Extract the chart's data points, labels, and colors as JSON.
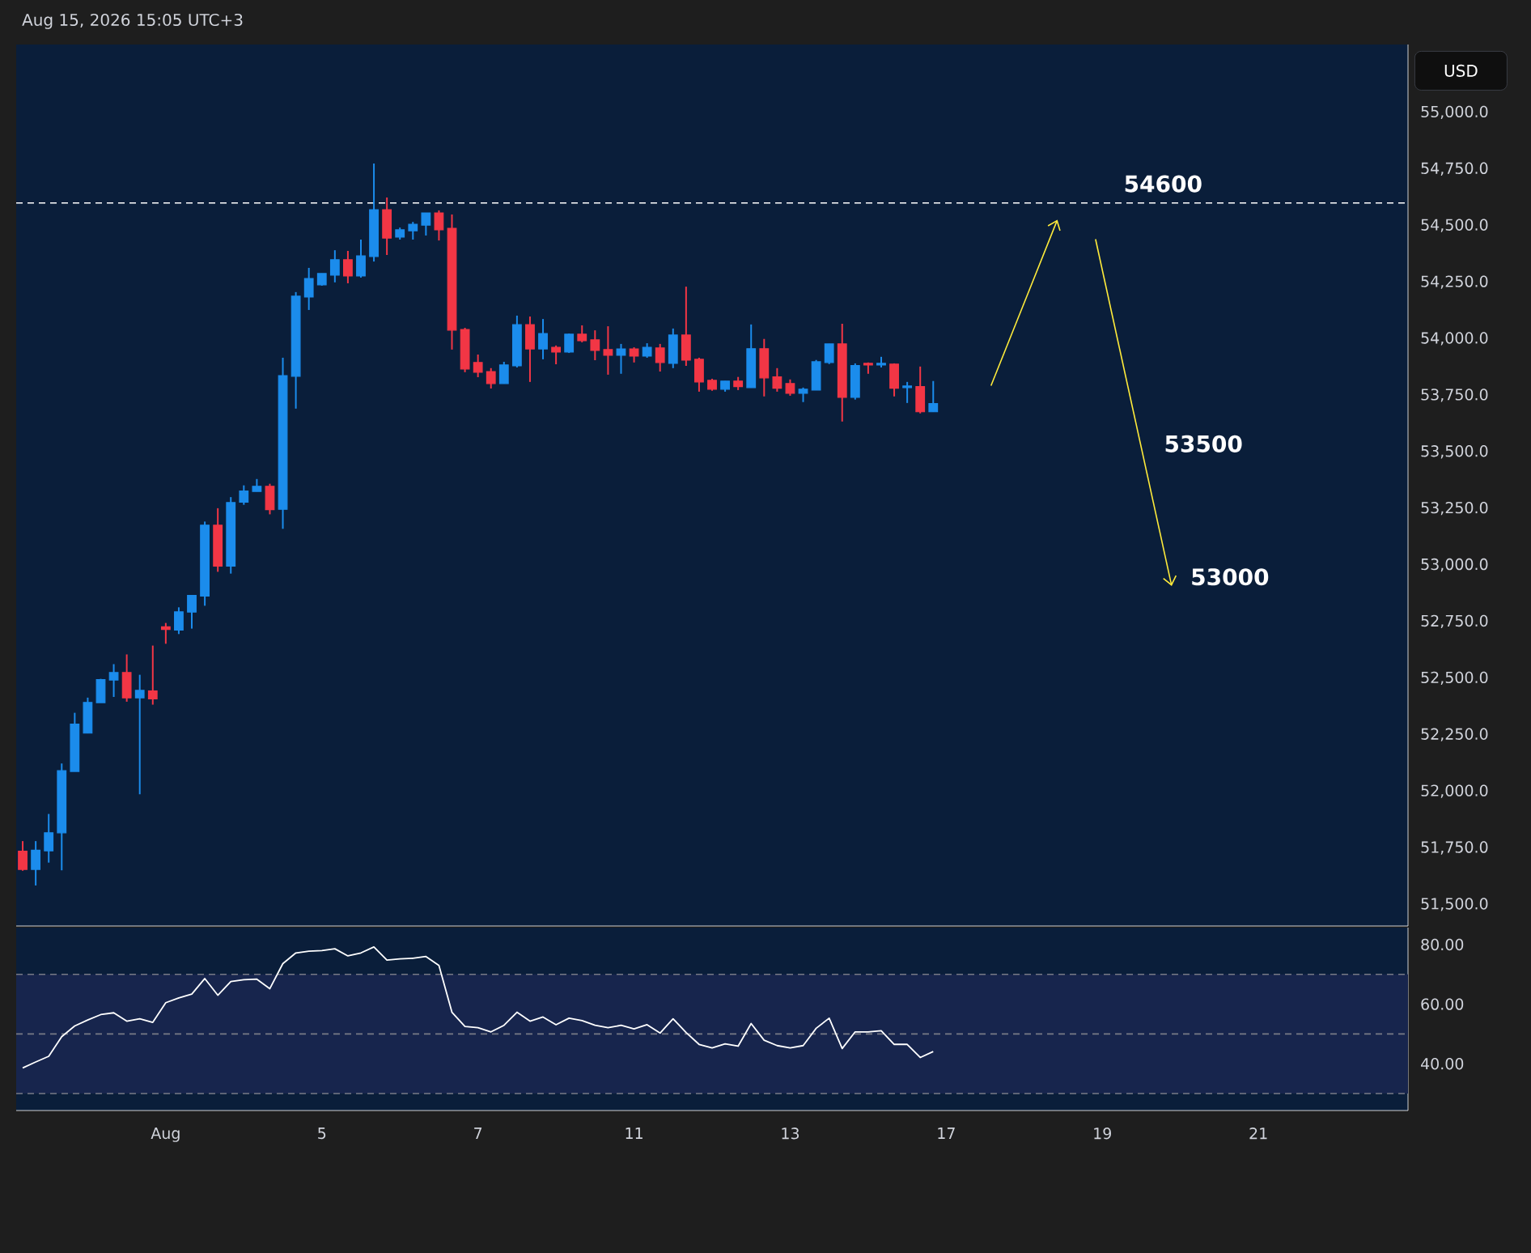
{
  "chart_data": [
    {
      "type": "candlestick",
      "subtitle": "Aug 15, 2026 15:05 UTC+3",
      "categories": [
        null,
        null,
        null,
        null,
        null,
        null,
        null,
        null,
        null,
        null,
        null,
        null,
        null,
        null,
        null,
        null,
        null,
        null,
        null,
        null,
        null,
        null,
        null,
        null,
        null,
        null,
        null,
        null,
        null,
        null,
        null,
        null,
        null,
        null,
        null,
        null,
        null,
        null,
        null,
        null,
        null,
        null,
        null,
        null,
        null,
        null,
        null,
        null,
        null,
        null,
        null,
        null,
        null,
        null,
        null,
        null,
        null,
        null,
        null,
        null,
        null,
        null,
        null,
        null,
        null,
        null,
        null,
        null,
        null,
        null,
        null,
        null,
        null,
        null,
        null,
        null,
        null,
        null,
        null,
        null,
        null,
        null,
        null,
        null,
        null,
        null,
        null,
        null,
        null,
        null,
        null,
        null,
        null,
        null,
        null,
        null,
        null,
        null,
        null,
        null,
        null,
        null,
        null,
        null,
        null,
        null,
        null
      ],
      "ohlc": [
        [
          51735,
          51780,
          51649,
          51655
        ],
        [
          51655,
          51780,
          51584,
          51740
        ],
        [
          51737,
          51900,
          51685,
          51817
        ],
        [
          51817,
          52123,
          51651,
          52091
        ],
        [
          52088,
          52347,
          52088,
          52297
        ],
        [
          52257,
          52414,
          52257,
          52393
        ],
        [
          52392,
          52497,
          52392,
          52494
        ],
        [
          52492,
          52562,
          52417,
          52525
        ],
        [
          52525,
          52605,
          52396,
          52413
        ],
        [
          52413,
          52515,
          51987,
          52446
        ],
        [
          52444,
          52644,
          52383,
          52409
        ],
        [
          52727,
          52744,
          52652,
          52715
        ],
        [
          52713,
          52813,
          52695,
          52793
        ],
        [
          52792,
          52866,
          52719,
          52866
        ],
        [
          52863,
          53192,
          52820,
          53176
        ],
        [
          53176,
          53251,
          52970,
          52995
        ],
        [
          52995,
          53300,
          52962,
          53276
        ],
        [
          53278,
          53352,
          53266,
          53327
        ],
        [
          53325,
          53380,
          53325,
          53348
        ],
        [
          53348,
          53359,
          53224,
          53245
        ],
        [
          53246,
          53916,
          53160,
          53837
        ],
        [
          53834,
          54206,
          53691,
          54188
        ],
        [
          54184,
          54313,
          54127,
          54266
        ],
        [
          54238,
          54288,
          54234,
          54288
        ],
        [
          54281,
          54391,
          54249,
          54349
        ],
        [
          54349,
          54388,
          54245,
          54277
        ],
        [
          54277,
          54438,
          54270,
          54366
        ],
        [
          54363,
          54774,
          54341,
          54570
        ],
        [
          54570,
          54624,
          54370,
          54445
        ],
        [
          54449,
          54491,
          54438,
          54481
        ],
        [
          54477,
          54516,
          54438,
          54506
        ],
        [
          54502,
          54556,
          54456,
          54556
        ],
        [
          54556,
          54567,
          54434,
          54481
        ],
        [
          54488,
          54549,
          53952,
          54038
        ],
        [
          54041,
          54048,
          53852,
          53866
        ],
        [
          53895,
          53930,
          53830,
          53852
        ],
        [
          53855,
          53870,
          53780,
          53802
        ],
        [
          53802,
          53898,
          53802,
          53884
        ],
        [
          53880,
          54102,
          53873,
          54062
        ],
        [
          54062,
          54098,
          53809,
          53955
        ],
        [
          53955,
          54087,
          53909,
          54023
        ],
        [
          53962,
          53970,
          53887,
          53941
        ],
        [
          53941,
          54023,
          53937,
          54020
        ],
        [
          54020,
          54059,
          53984,
          53991
        ],
        [
          53995,
          54037,
          53905,
          53948
        ],
        [
          53952,
          54055,
          53841,
          53927
        ],
        [
          53927,
          53977,
          53845,
          53955
        ],
        [
          53955,
          53962,
          53895,
          53923
        ],
        [
          53923,
          53980,
          53916,
          53962
        ],
        [
          53959,
          53977,
          53855,
          53895
        ],
        [
          53891,
          54045,
          53870,
          54016
        ],
        [
          54016,
          54230,
          53880,
          53905
        ],
        [
          53909,
          53916,
          53766,
          53809
        ],
        [
          53816,
          53823,
          53770,
          53777
        ],
        [
          53777,
          53813,
          53766,
          53813
        ],
        [
          53813,
          53831,
          53773,
          53788
        ],
        [
          53784,
          54063,
          53784,
          53956
        ],
        [
          53956,
          53999,
          53745,
          53827
        ],
        [
          53831,
          53870,
          53766,
          53781
        ],
        [
          53802,
          53820,
          53748,
          53759
        ],
        [
          53759,
          53784,
          53720,
          53777
        ],
        [
          53773,
          53906,
          53773,
          53898
        ],
        [
          53895,
          53977,
          53888,
          53977
        ],
        [
          53977,
          54066,
          53634,
          53741
        ],
        [
          53741,
          53891,
          53731,
          53881
        ],
        [
          53891,
          53895,
          53845,
          53884
        ],
        [
          53884,
          53920,
          53873,
          53891
        ],
        [
          53888,
          53891,
          53745,
          53781
        ],
        [
          53784,
          53809,
          53716,
          53791
        ],
        [
          53788,
          53877,
          53670,
          53677
        ],
        [
          53677,
          53813,
          53677,
          53713
        ],
        null,
        null,
        null,
        null,
        null,
        null,
        null,
        null,
        null,
        null,
        null,
        null,
        null,
        null,
        null,
        null,
        null,
        null,
        null,
        null,
        null,
        null,
        null,
        null,
        null,
        null,
        null,
        null,
        null,
        null,
        null,
        null,
        null,
        null,
        null,
        null
      ],
      "colors": [
        "#f23645",
        "#1b8cec",
        "#1b8cec",
        "#1b8cec",
        "#1b8cec",
        "#1b8cec",
        "#1b8cec",
        "#1b8cec",
        "#f23645",
        "#1b8cec",
        "#f23645",
        "#f23645",
        "#1b8cec",
        "#1b8cec",
        "#1b8cec",
        "#f23645",
        "#1b8cec",
        "#1b8cec",
        "#1b8cec",
        "#f23645",
        "#1b8cec",
        "#1b8cec",
        "#1b8cec",
        "#1b8cec",
        "#1b8cec",
        "#f23645",
        "#1b8cec",
        "#1b8cec",
        "#f23645",
        "#1b8cec",
        "#1b8cec",
        "#1b8cec",
        "#f23645",
        "#f23645",
        "#f23645",
        "#f23645",
        "#f23645",
        "#1b8cec",
        "#1b8cec",
        "#f23645",
        "#1b8cec",
        "#f23645",
        "#1b8cec",
        "#f23645",
        "#f23645",
        "#f23645",
        "#1b8cec",
        "#f23645",
        "#1b8cec",
        "#f23645",
        "#1b8cec",
        "#f23645",
        "#f23645",
        "#f23645",
        "#1b8cec",
        "#f23645",
        "#1b8cec",
        "#f23645",
        "#f23645",
        "#f23645",
        "#1b8cec",
        "#1b8cec",
        "#1b8cec",
        "#f23645",
        "#1b8cec",
        "#f23645",
        "#1b8cec",
        "#f23645",
        "#1b8cec",
        "#f23645",
        "#1b8cec",
        null,
        null,
        null,
        null,
        null,
        null,
        null,
        null,
        null,
        null,
        null,
        null,
        null,
        null,
        null,
        null,
        null,
        null,
        null,
        null,
        null,
        null,
        null,
        null,
        null,
        null,
        null,
        null,
        null,
        null,
        null,
        null,
        null,
        null,
        null,
        null
      ],
      "ylim": [
        51405,
        55300
      ],
      "yticks": [
        {
          "value": 51500,
          "label": "51,500.0"
        },
        {
          "value": 51750,
          "label": "51,750.0"
        },
        {
          "value": 52000,
          "label": "52,000.0"
        },
        {
          "value": 52250,
          "label": "52,250.0"
        },
        {
          "value": 52500,
          "label": "52,500.0"
        },
        {
          "value": 52750,
          "label": "52,750.0"
        },
        {
          "value": 53000,
          "label": "53,000.0"
        },
        {
          "value": 53250,
          "label": "53,250.0"
        },
        {
          "value": 53500,
          "label": "53,500.0"
        },
        {
          "value": 53750,
          "label": "53,750.0"
        },
        {
          "value": 54000,
          "label": "54,000.0"
        },
        {
          "value": 54250,
          "label": "54,250.0"
        },
        {
          "value": 54500,
          "label": "54,500.0"
        },
        {
          "value": 54750,
          "label": "54,750.0"
        },
        {
          "value": 55000,
          "label": "55,000.0"
        }
      ],
      "tick_labels": "y",
      "ref_lines": [
        {
          "axis": "y",
          "value": 54600,
          "label": "54600",
          "color": "#ffffff",
          "line_style": "dashed"
        }
      ],
      "annotations": [
        "USD",
        "53500",
        "53000"
      ]
    },
    {
      "type": "line",
      "categories": [
        null,
        null,
        null,
        null,
        null,
        null,
        null,
        null,
        null,
        null,
        null,
        "Aug",
        null,
        null,
        null,
        null,
        null,
        null,
        null,
        null,
        null,
        null,
        null,
        "5",
        null,
        null,
        null,
        null,
        null,
        null,
        null,
        null,
        null,
        null,
        null,
        "7",
        null,
        null,
        null,
        null,
        null,
        null,
        null,
        null,
        null,
        null,
        null,
        "11",
        null,
        null,
        null,
        null,
        null,
        null,
        null,
        null,
        null,
        null,
        null,
        "13",
        null,
        null,
        null,
        null,
        null,
        null,
        null,
        null,
        null,
        null,
        null,
        "17",
        null,
        null,
        null,
        null,
        null,
        null,
        null,
        null,
        null,
        null,
        null,
        "19",
        null,
        null,
        null,
        null,
        null,
        null,
        null,
        null,
        null,
        null,
        null,
        "21",
        null,
        null,
        null,
        null,
        null,
        null,
        null,
        null,
        null,
        null,
        null
      ],
      "series": [
        {
          "color": "#ffffff",
          "values": [
            38.6,
            40.6,
            42.5,
            49.1,
            52.7,
            54.7,
            56.5,
            57.1,
            54.3,
            55.1,
            53.9,
            60.5,
            62.1,
            63.4,
            68.6,
            63.0,
            67.6,
            68.2,
            68.4,
            65.2,
            73.6,
            77.2,
            77.8,
            78.0,
            78.6,
            76.2,
            77.2,
            79.2,
            74.8,
            75.2,
            75.4,
            76.0,
            73.0,
            57.3,
            52.5,
            52.1,
            50.7,
            52.9,
            57.3,
            54.3,
            55.7,
            53.1,
            55.3,
            54.5,
            52.9,
            52.1,
            52.9,
            51.7,
            53.1,
            50.3,
            55.1,
            50.5,
            46.5,
            45.3,
            46.7,
            45.9,
            53.5,
            47.9,
            46.1,
            45.3,
            46.1,
            51.9,
            55.3,
            45.1,
            50.7,
            50.7,
            51.1,
            46.5,
            46.5,
            42.1,
            44.1,
            null,
            null,
            null,
            null,
            null,
            null,
            null,
            null,
            null,
            null,
            null,
            null,
            null,
            null,
            null,
            null,
            null,
            null,
            null,
            null,
            null,
            null,
            null,
            null,
            null,
            null,
            null,
            null,
            null,
            null,
            null,
            null,
            null,
            null,
            null,
            null
          ]
        }
      ],
      "ylim": [
        24.3,
        85.7
      ],
      "yticks": [
        {
          "value": 40,
          "label": "40.00"
        },
        {
          "value": 60,
          "label": "60.00"
        },
        {
          "value": 80,
          "label": "80.00"
        }
      ],
      "ref_lines": [
        {
          "axis": "y",
          "value": 70,
          "color": "#787b86",
          "line_style": "dashed"
        },
        {
          "axis": "y",
          "value": 50,
          "color": "#787b86",
          "line_style": "dashed"
        },
        {
          "axis": "y",
          "value": 30,
          "color": "#787b86",
          "line_style": "dashed"
        }
      ],
      "bands": [
        {
          "axis": "y",
          "from": 30,
          "to": 70,
          "color": "#17254d"
        }
      ]
    }
  ]
}
